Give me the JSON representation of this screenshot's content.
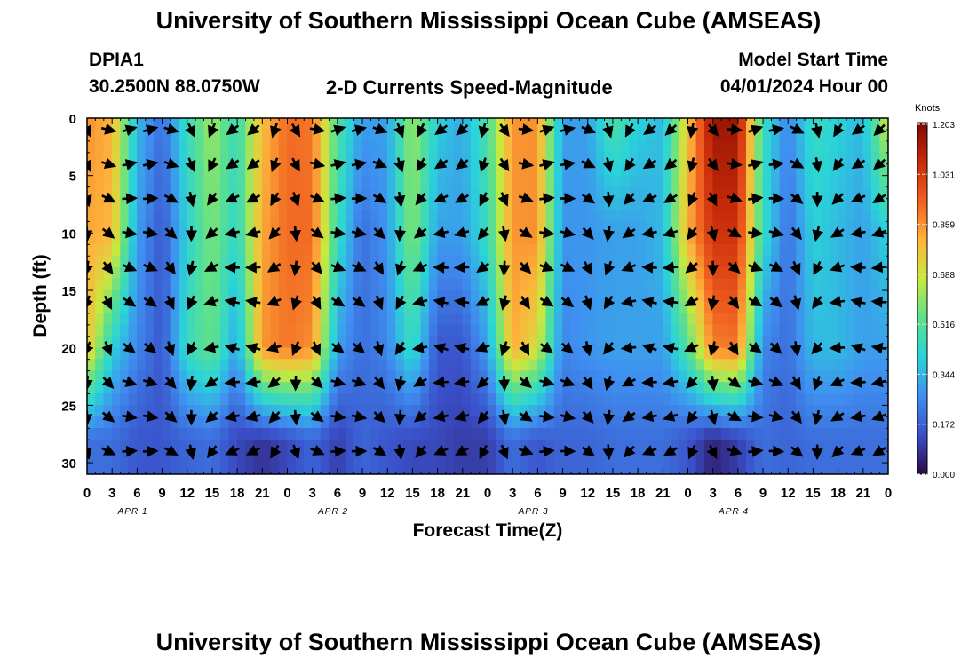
{
  "header": {
    "title": "University of Southern Mississippi Ocean Cube (AMSEAS)",
    "station_id": "DPIA1",
    "coordinates": "30.2500N  88.0750W",
    "plot_title": "2-D Currents Speed-Magnitude",
    "model_start_label": "Model Start Time",
    "model_start_value": "04/01/2024 Hour 00"
  },
  "footer": {
    "title": "University of Southern Mississippi Ocean Cube (AMSEAS)"
  },
  "chart_data": {
    "type": "heatmap",
    "title": "2-D Currents Speed-Magnitude",
    "xlabel": "Forecast Time(Z)",
    "ylabel": "Depth (ft)",
    "x_ticks": [
      "0",
      "3",
      "6",
      "9",
      "12",
      "15",
      "18",
      "21",
      "0",
      "3",
      "6",
      "9",
      "12",
      "15",
      "18",
      "21",
      "0",
      "3",
      "6",
      "9",
      "12",
      "15",
      "18",
      "21",
      "0",
      "3",
      "6",
      "9",
      "12",
      "15",
      "18",
      "21",
      "0"
    ],
    "x_range_hours": [
      0,
      96
    ],
    "day_labels": [
      {
        "hour": 4,
        "label": "APR 1"
      },
      {
        "hour": 28,
        "label": "APR 2"
      },
      {
        "hour": 52,
        "label": "APR 3"
      },
      {
        "hour": 76,
        "label": "APR 4"
      }
    ],
    "y_ticks": [
      "0",
      "5",
      "10",
      "15",
      "20",
      "25",
      "30"
    ],
    "y_range_ft": [
      0,
      31
    ],
    "y_inverted": true,
    "colorbar": {
      "unit": "Knots",
      "ticks": [
        "1.203",
        "1.031",
        "0.859",
        "0.688",
        "0.516",
        "0.344",
        "0.172",
        "0.000"
      ],
      "range": [
        0,
        1.203
      ],
      "colormap": [
        "#2c0a48",
        "#3a4fc8",
        "#3f8ff0",
        "#2ad4d8",
        "#5de08c",
        "#c8e93e",
        "#fdb43c",
        "#f06020",
        "#c82a0a",
        "#7a0a00"
      ]
    },
    "approx_values_knots": {
      "x_hours": [
        0,
        3,
        6,
        9,
        12,
        15,
        18,
        21,
        24,
        27,
        30,
        33,
        36,
        39,
        42,
        45,
        48,
        51,
        54,
        57,
        60,
        63,
        66,
        69,
        72,
        75,
        78,
        81,
        84,
        87,
        90,
        93,
        96
      ],
      "surface_0ft": [
        0.86,
        0.8,
        0.35,
        0.2,
        0.45,
        0.62,
        0.45,
        0.78,
        0.92,
        0.9,
        0.5,
        0.3,
        0.3,
        0.62,
        0.4,
        0.32,
        0.5,
        0.85,
        0.86,
        0.3,
        0.3,
        0.5,
        0.4,
        0.35,
        0.75,
        1.15,
        1.15,
        0.45,
        0.25,
        0.45,
        0.4,
        0.35,
        0.7
      ],
      "depth_10ft": [
        0.82,
        0.8,
        0.3,
        0.15,
        0.4,
        0.58,
        0.42,
        0.82,
        0.92,
        0.92,
        0.45,
        0.2,
        0.28,
        0.6,
        0.3,
        0.3,
        0.45,
        0.85,
        0.86,
        0.28,
        0.28,
        0.3,
        0.3,
        0.35,
        0.8,
        1.05,
        1.05,
        0.45,
        0.2,
        0.4,
        0.35,
        0.3,
        0.4
      ],
      "depth_20ft": [
        0.78,
        0.4,
        0.25,
        0.15,
        0.45,
        0.55,
        0.3,
        0.85,
        0.9,
        0.86,
        0.3,
        0.2,
        0.25,
        0.45,
        0.15,
        0.15,
        0.3,
        0.82,
        0.7,
        0.25,
        0.28,
        0.3,
        0.3,
        0.3,
        0.5,
        0.88,
        0.9,
        0.25,
        0.2,
        0.35,
        0.35,
        0.3,
        0.3
      ],
      "depth_28ft": [
        0.2,
        0.2,
        0.15,
        0.15,
        0.18,
        0.2,
        0.12,
        0.08,
        0.12,
        0.18,
        0.1,
        0.18,
        0.15,
        0.12,
        0.12,
        0.1,
        0.1,
        0.2,
        0.15,
        0.18,
        0.18,
        0.2,
        0.2,
        0.2,
        0.15,
        0.05,
        0.1,
        0.2,
        0.18,
        0.2,
        0.2,
        0.2,
        0.2
      ]
    }
  }
}
